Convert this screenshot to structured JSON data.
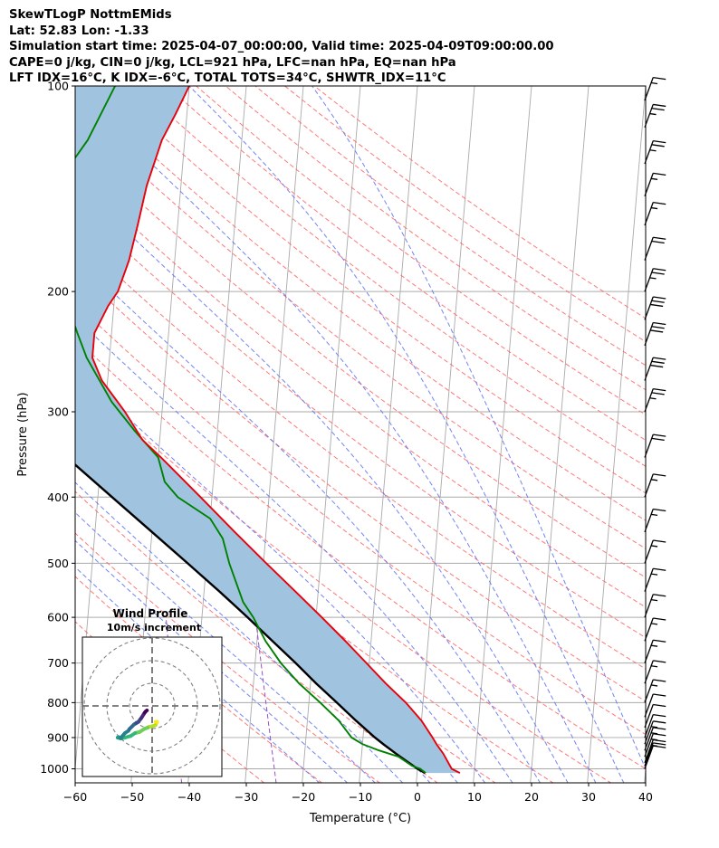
{
  "header": {
    "title": "SkewTLogP NottmEMids",
    "location": "Lat: 52.83   Lon: -1.33",
    "times": "Simulation start time: 2025-04-07_00:00:00, Valid time: 2025-04-09T09:00:00.00",
    "indices1": "CAPE=0 j/kg, CIN=0 j/kg, LCL=921 hPa, LFC=nan hPa, EQ=nan hPa",
    "indices2": "LFT IDX=16°C, K IDX=-6°C, TOTAL TOTS=34°C, SHWTR_IDX=11°C"
  },
  "colors": {
    "temperature": "#e8000b",
    "dewpoint": "#008000",
    "parcel": "#000000",
    "shade": "#a0c4df",
    "dry_adiabat": "#ff6060",
    "moist_adiabat": "#5a6ff0",
    "mixing_ratio": "#9a4fc8",
    "isotherm": "#aaaaaa"
  },
  "chart_data": [
    {
      "type": "line",
      "subtype": "skew-t log-p",
      "xlabel": "Temperature (°C)",
      "ylabel": "Pressure (hPa)",
      "xlim": [
        -60,
        40
      ],
      "ylim": [
        1050,
        100
      ],
      "y_scale": "log",
      "x_ticks": [
        "−60",
        "−50",
        "−40",
        "−30",
        "−20",
        "−10",
        "0",
        "10",
        "20",
        "30",
        "40"
      ],
      "x_tick_values": [
        -60,
        -50,
        -40,
        -30,
        -20,
        -10,
        0,
        10,
        20,
        30,
        40
      ],
      "y_ticks": [
        "1000",
        "900",
        "800",
        "700",
        "600",
        "500",
        "400",
        "300",
        "200",
        "100"
      ],
      "y_tick_values": [
        1000,
        900,
        800,
        700,
        600,
        500,
        400,
        300,
        200,
        100
      ],
      "grid": true,
      "series": [
        {
          "key": "temperature",
          "p": [
            1014,
            1000,
            950,
            921,
            900,
            850,
            800,
            750,
            700,
            650,
            600,
            550,
            500,
            450,
            400,
            350,
            330,
            300,
            270,
            250,
            230,
            210,
            200,
            180,
            160,
            140,
            120,
            110,
            100
          ],
          "t": [
            7.5,
            6.0,
            4.3,
            3.0,
            2.2,
            0.0,
            -3.0,
            -6.8,
            -10.5,
            -14.5,
            -19.0,
            -24.0,
            -29.5,
            -35.5,
            -42.0,
            -49.5,
            -53.0,
            -56.5,
            -61.0,
            -63.0,
            -63.0,
            -61.0,
            -59.5,
            -58.0,
            -57.0,
            -56.0,
            -54.0,
            -52.0,
            -50.0
          ]
        },
        {
          "key": "dewpoint",
          "p": [
            1014,
            1000,
            990,
            960,
            940,
            920,
            900,
            850,
            800,
            750,
            700,
            650,
            600,
            570,
            500,
            460,
            430,
            400,
            380,
            350,
            320,
            290,
            250,
            230,
            210,
            190,
            180,
            160,
            140,
            120,
            100
          ],
          "t": [
            1.5,
            0.5,
            -1.0,
            -3.5,
            -7.0,
            -10.0,
            -12.0,
            -14.5,
            -18.0,
            -22.0,
            -25.5,
            -28.5,
            -31.0,
            -33.0,
            -36.0,
            -37.5,
            -40.0,
            -46.0,
            -48.5,
            -50.0,
            -54.5,
            -59.0,
            -64.0,
            -66.0,
            -68.0,
            -73.5,
            -76.0,
            -75.0,
            -72.0,
            -67.0,
            -63.0
          ]
        },
        {
          "key": "parcel",
          "p": [
            1014,
            1000,
            950,
            921,
            900,
            850,
            800,
            750,
            700,
            650,
            600,
            550,
            500,
            450,
            400,
            350,
            300,
            250,
            200,
            170,
            150,
            130,
            110,
            100
          ],
          "t": [
            1.4,
            0.0,
            -4.0,
            -6.3,
            -7.9,
            -11.5,
            -15.1,
            -19.0,
            -22.9,
            -27.3,
            -32.0,
            -37.3,
            -43.3,
            -50.0,
            -57.5,
            -66.0,
            -75.8,
            -87.2,
            -101.0,
            -110.5,
            -118.0,
            -126.5,
            -136.5,
            -142.5
          ]
        }
      ],
      "shading": "between temperature and parcel",
      "background_lines": [
        "dry adiabats",
        "moist adiabats",
        "mixing ratio lines",
        "skewed isotherms"
      ],
      "wind_barbs": {
        "p": [
          1000,
          990,
          980,
          960,
          940,
          920,
          900,
          870,
          840,
          800,
          750,
          700,
          650,
          600,
          550,
          500,
          450,
          400,
          350,
          300,
          270,
          240,
          220,
          200,
          180,
          160,
          145,
          130,
          115,
          105
        ],
        "speed_kt": [
          10,
          10,
          15,
          15,
          15,
          15,
          10,
          10,
          10,
          15,
          15,
          15,
          15,
          15,
          15,
          15,
          15,
          15,
          20,
          25,
          30,
          30,
          30,
          25,
          20,
          15,
          15,
          25,
          25,
          15
        ]
      }
    },
    {
      "type": "line",
      "subtype": "hodograph",
      "title": "Wind Profile",
      "subtitle": "10m/s increment",
      "u": [
        1.5,
        2.0,
        2.2,
        1.5,
        0.0,
        -1.5,
        -2.0,
        -3.5,
        -5.5,
        -7.5,
        -9.5,
        -12.0,
        -13.5,
        -14.8,
        -15.2,
        -14.0,
        -12.0,
        -10.5,
        -10.0,
        -8.8,
        -8.0,
        -7.0,
        -6.0,
        -5.3,
        -4.8,
        -4.3,
        -3.8,
        -3.3,
        -2.8,
        -2.3
      ],
      "v": [
        -7.0,
        -7.5,
        -7.0,
        -8.5,
        -9.0,
        -9.3,
        -9.6,
        -10.2,
        -11.5,
        -12.0,
        -13.3,
        -14.0,
        -14.3,
        -13.8,
        -14.0,
        -14.3,
        -12.0,
        -11.0,
        -10.2,
        -9.0,
        -8.2,
        -7.6,
        -7.0,
        -6.0,
        -5.4,
        -4.6,
        -3.8,
        -3.0,
        -2.4,
        -2.0
      ],
      "rings": [
        10,
        20,
        30
      ]
    }
  ]
}
